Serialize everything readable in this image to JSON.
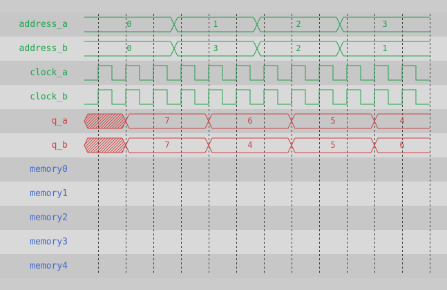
{
  "viewer": {
    "background": "#cbcbcb",
    "row_colors": {
      "dark": "#c7c7c7",
      "light": "#d9d9d9"
    },
    "grid_color": "#3c3c3c",
    "palette": {
      "green": "#1da24b",
      "red": "#cc4444",
      "blue": "#4169cd"
    }
  },
  "timeline": {
    "t_start": 0,
    "t_end": 12.5,
    "grid_first": 0.5,
    "grid_step": 1,
    "grid_count": 13
  },
  "signals": {
    "rows": [
      {
        "name": "address_a",
        "color": "green",
        "type": "bus",
        "start_style": "flat",
        "segments": [
          {
            "label": "0",
            "t0": 0,
            "t1": 3.25
          },
          {
            "label": "1",
            "t0": 3.25,
            "t1": 6.25
          },
          {
            "label": "2",
            "t0": 6.25,
            "t1": 9.25
          },
          {
            "label": "3",
            "t0": 9.25,
            "t1": 12.5
          }
        ]
      },
      {
        "name": "address_b",
        "color": "green",
        "type": "bus",
        "start_style": "flat",
        "segments": [
          {
            "label": "0",
            "t0": 0,
            "t1": 3.25
          },
          {
            "label": "3",
            "t0": 3.25,
            "t1": 6.25
          },
          {
            "label": "2",
            "t0": 6.25,
            "t1": 9.25
          },
          {
            "label": "1",
            "t0": 9.25,
            "t1": 12.5
          }
        ]
      },
      {
        "name": "clock_a",
        "color": "green",
        "type": "clock",
        "first_rise": 0.5,
        "period": 1,
        "duty": 0.5
      },
      {
        "name": "clock_b",
        "color": "green",
        "type": "clock",
        "first_rise": 0.5,
        "period": 1,
        "duty": 0.5
      },
      {
        "name": "q_a",
        "color": "red",
        "type": "bus",
        "start_style": "wedge",
        "segments": [
          {
            "label": "",
            "unknown": true,
            "t0": 0,
            "t1": 1.5
          },
          {
            "label": "7",
            "t0": 1.5,
            "t1": 4.5
          },
          {
            "label": "6",
            "t0": 4.5,
            "t1": 7.5
          },
          {
            "label": "5",
            "t0": 7.5,
            "t1": 10.5
          },
          {
            "label": "4",
            "t0": 10.5,
            "t1": 12.5
          }
        ]
      },
      {
        "name": "q_b",
        "color": "red",
        "type": "bus",
        "start_style": "wedge",
        "segments": [
          {
            "label": "",
            "unknown": true,
            "t0": 0,
            "t1": 1.5
          },
          {
            "label": "7",
            "t0": 1.5,
            "t1": 4.5
          },
          {
            "label": "4",
            "t0": 4.5,
            "t1": 7.5
          },
          {
            "label": "5",
            "t0": 7.5,
            "t1": 10.5
          },
          {
            "label": "6",
            "t0": 10.5,
            "t1": 12.5
          }
        ]
      },
      {
        "name": "memory0",
        "color": "blue",
        "type": "empty"
      },
      {
        "name": "memory1",
        "color": "blue",
        "type": "empty"
      },
      {
        "name": "memory2",
        "color": "blue",
        "type": "empty"
      },
      {
        "name": "memory3",
        "color": "blue",
        "type": "empty"
      },
      {
        "name": "memory4",
        "color": "blue",
        "type": "empty"
      }
    ]
  }
}
